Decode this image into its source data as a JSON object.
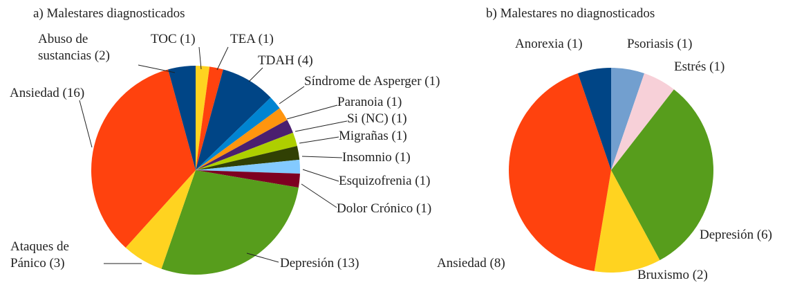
{
  "chart_data": [
    {
      "type": "pie",
      "title": "a) Malestares diagnosticados",
      "labels": [
        "TOC (1)",
        "TEA (1)",
        "TDAH (4)",
        "Síndrome de Asperger (1)",
        "Paranoia (1)",
        "Si (NC) (1)",
        "Migrañas (1)",
        "Insomnio (1)",
        "Esquizofrenia (1)",
        "Dolor Crónico (1)",
        "Depresión (13)",
        "Ataques de Pánico (3)",
        "Ansiedad (16)",
        "Abuso de sustancias (2)"
      ],
      "values": [
        1,
        1,
        4,
        1,
        1,
        1,
        1,
        1,
        1,
        1,
        13,
        3,
        16,
        2
      ],
      "colors": [
        "#ffd320",
        "#ff420e",
        "#004586",
        "#0084d1",
        "#ff950e",
        "#4b1f6f",
        "#aecf00",
        "#314004",
        "#83caff",
        "#7e0021",
        "#579d1c",
        "#ffd320",
        "#ff420e",
        "#004586"
      ]
    },
    {
      "type": "pie",
      "title": "b) Malestares no diagnosticados",
      "labels": [
        "Psoriasis (1)",
        "Estrés (1)",
        "Depresión (6)",
        "Bruxismo (2)",
        "Ansiedad (8)",
        "Anorexia (1)"
      ],
      "values": [
        1,
        1,
        6,
        2,
        8,
        1
      ],
      "colors": [
        "#729fcf",
        "#f7d0d8",
        "#579d1c",
        "#ffd320",
        "#ff420e",
        "#004586"
      ]
    }
  ]
}
